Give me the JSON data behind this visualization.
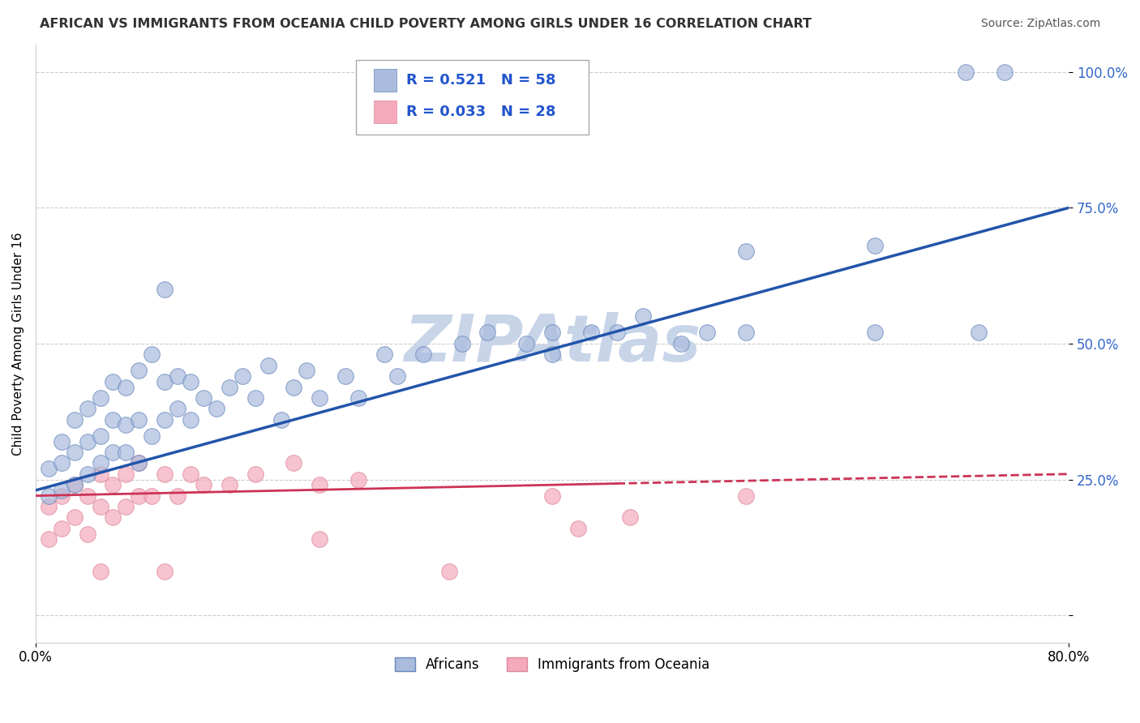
{
  "title": "AFRICAN VS IMMIGRANTS FROM OCEANIA CHILD POVERTY AMONG GIRLS UNDER 16 CORRELATION CHART",
  "source": "Source: ZipAtlas.com",
  "ylabel": "Child Poverty Among Girls Under 16",
  "xlim": [
    0.0,
    0.8
  ],
  "ylim": [
    -0.05,
    1.05
  ],
  "ytick_positions": [
    0.0,
    0.25,
    0.5,
    0.75,
    1.0
  ],
  "ytick_labels": [
    "",
    "25.0%",
    "50.0%",
    "75.0%",
    "100.0%"
  ],
  "grid_color": "#cccccc",
  "background_color": "#ffffff",
  "watermark": "ZIPAtlas",
  "watermark_color": "#c8d4e8",
  "series1_color": "#aabbdd",
  "series2_color": "#f4aabc",
  "series1_edge": "#6688bb",
  "series2_edge": "#dd8899",
  "series1_label": "Africans",
  "series2_label": "Immigrants from Oceania",
  "legend_R1": "R = 0.521",
  "legend_N1": "N = 58",
  "legend_R2": "R = 0.033",
  "legend_N2": "N = 28",
  "line1_color": "#2255aa",
  "line2_color": "#cc3355",
  "africans_x": [
    0.01,
    0.01,
    0.02,
    0.02,
    0.02,
    0.03,
    0.03,
    0.03,
    0.04,
    0.04,
    0.04,
    0.05,
    0.05,
    0.05,
    0.06,
    0.06,
    0.06,
    0.07,
    0.07,
    0.07,
    0.08,
    0.08,
    0.08,
    0.09,
    0.09,
    0.1,
    0.1,
    0.11,
    0.11,
    0.12,
    0.12,
    0.13,
    0.14,
    0.15,
    0.16,
    0.17,
    0.18,
    0.19,
    0.2,
    0.21,
    0.22,
    0.24,
    0.25,
    0.27,
    0.28,
    0.3,
    0.33,
    0.35,
    0.38,
    0.4,
    0.43,
    0.45,
    0.47,
    0.5,
    0.52,
    0.55,
    0.65,
    0.73
  ],
  "africans_y": [
    0.22,
    0.27,
    0.23,
    0.28,
    0.32,
    0.24,
    0.3,
    0.36,
    0.26,
    0.32,
    0.38,
    0.28,
    0.33,
    0.4,
    0.3,
    0.36,
    0.43,
    0.3,
    0.35,
    0.42,
    0.28,
    0.36,
    0.45,
    0.33,
    0.48,
    0.36,
    0.43,
    0.38,
    0.44,
    0.36,
    0.43,
    0.4,
    0.38,
    0.42,
    0.44,
    0.4,
    0.46,
    0.36,
    0.42,
    0.45,
    0.4,
    0.44,
    0.4,
    0.48,
    0.44,
    0.48,
    0.5,
    0.52,
    0.5,
    0.48,
    0.52,
    0.52,
    0.55,
    0.5,
    0.52,
    0.52,
    0.68,
    0.52
  ],
  "africans_outliers_x": [
    0.1,
    0.4,
    0.55,
    0.65,
    0.72,
    0.75
  ],
  "africans_outliers_y": [
    0.6,
    0.52,
    0.67,
    0.52,
    1.0,
    1.0
  ],
  "oceania_x": [
    0.01,
    0.01,
    0.02,
    0.02,
    0.03,
    0.03,
    0.04,
    0.04,
    0.05,
    0.05,
    0.06,
    0.06,
    0.07,
    0.07,
    0.08,
    0.08,
    0.09,
    0.1,
    0.11,
    0.12,
    0.13,
    0.15,
    0.17,
    0.2,
    0.22,
    0.25,
    0.4,
    0.46
  ],
  "oceania_y": [
    0.14,
    0.2,
    0.16,
    0.22,
    0.18,
    0.24,
    0.15,
    0.22,
    0.2,
    0.26,
    0.18,
    0.24,
    0.2,
    0.26,
    0.22,
    0.28,
    0.22,
    0.26,
    0.22,
    0.26,
    0.24,
    0.24,
    0.26,
    0.28,
    0.24,
    0.25,
    0.22,
    0.18
  ],
  "oceania_outliers_x": [
    0.05,
    0.1,
    0.22,
    0.32,
    0.42,
    0.55
  ],
  "oceania_outliers_y": [
    0.08,
    0.08,
    0.14,
    0.08,
    0.16,
    0.22
  ],
  "line1_x0": 0.0,
  "line1_y0": 0.23,
  "line1_x1": 0.8,
  "line1_y1": 0.75,
  "line2_x0": 0.0,
  "line2_y0": 0.22,
  "line2_x1": 0.8,
  "line2_y1": 0.26,
  "line2_solid_end": 0.45
}
